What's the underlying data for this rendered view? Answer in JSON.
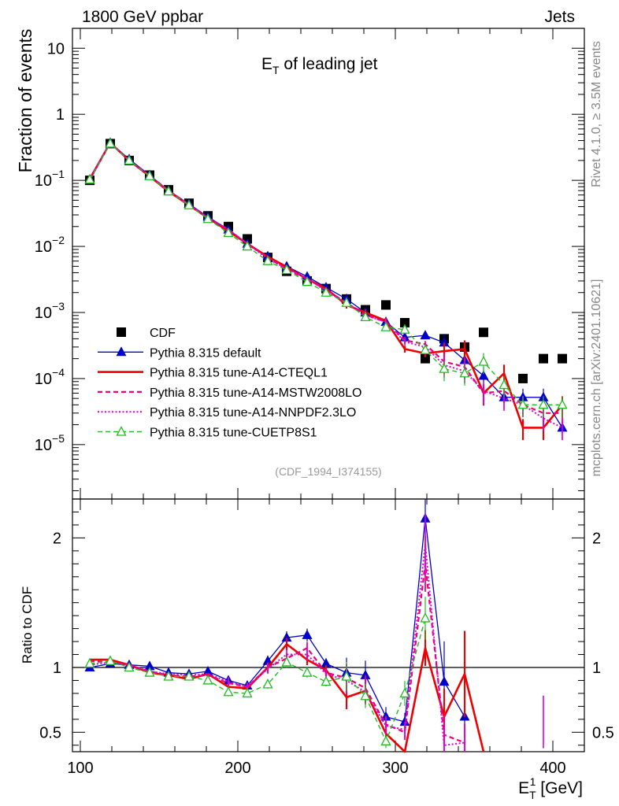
{
  "header": {
    "left": "1800 GeV ppbar",
    "right": "Jets"
  },
  "side": {
    "rivet": "Rivet 4.1.0, ≥ 3.5M events",
    "mcplots": "mcplots.cern.ch [arXiv:2401.10621]"
  },
  "analysis_id": "(CDF_1994_I374155)",
  "chart_data": [
    {
      "type": "scatter",
      "title": "E_T of leading jet",
      "title_main": "E",
      "title_sub": "T",
      "title_rest": " of leading jet",
      "xlabel": "E_T^1 [GeV]",
      "ylabel": "Fraction of events",
      "yscale": "log",
      "xlim": [
        95,
        420
      ],
      "ylim": [
        1.5e-06,
        20
      ],
      "xticks": [
        100,
        200,
        300,
        400
      ],
      "yticks": [
        {
          "value": 1e-05,
          "base": "10",
          "exp": "−5"
        },
        {
          "value": 0.0001,
          "base": "10",
          "exp": "−4"
        },
        {
          "value": 0.001,
          "base": "10",
          "exp": "−3"
        },
        {
          "value": 0.01,
          "base": "10",
          "exp": "−2"
        },
        {
          "value": 0.1,
          "base": "10",
          "exp": "−1"
        },
        {
          "value": 1,
          "base": "1",
          "exp": ""
        },
        {
          "value": 10,
          "base": "10",
          "exp": ""
        }
      ],
      "x": [
        106,
        119,
        131,
        144,
        156,
        169,
        181,
        194,
        206,
        219,
        231,
        244,
        256,
        269,
        281,
        294,
        306,
        319,
        331,
        344,
        356,
        369,
        381,
        394,
        406
      ],
      "series": [
        {
          "name": "CDF",
          "color": "#000000",
          "style": "data",
          "values": [
            0.1,
            0.36,
            0.2,
            0.12,
            0.072,
            0.045,
            0.029,
            0.02,
            0.013,
            0.0068,
            0.0042,
            0.003,
            0.0023,
            0.0016,
            0.0011,
            0.0013,
            0.0007,
            0.0002,
            0.0004,
            0.0003,
            0.0005,
            null,
            0.0001,
            0.0002,
            0.0002
          ]
        },
        {
          "name": "Pythia 8.315 default",
          "color": "#0000cc",
          "style": "default",
          "values": [
            0.1,
            0.37,
            0.21,
            0.12,
            0.07,
            0.044,
            0.028,
            0.018,
            0.011,
            0.0071,
            0.005,
            0.0035,
            0.0024,
            0.0016,
            0.001,
            0.00072,
            0.00042,
            0.00045,
            0.00035,
            0.00019,
            0.00011,
            5.2e-05,
            5.2e-05,
            5.2e-05,
            1.8e-05
          ]
        },
        {
          "name": "Pythia 8.315 tune-A14-CTEQL1",
          "color": "#ee0000",
          "style": "a14cteq",
          "values": [
            0.105,
            0.37,
            0.2,
            0.115,
            0.068,
            0.042,
            0.027,
            0.017,
            0.011,
            0.007,
            0.0049,
            0.0032,
            0.0023,
            0.0013,
            0.001,
            0.00075,
            0.00028,
            0.00024,
            0.00026,
            0.00028,
            6e-05,
            0.00012,
            1.8e-05,
            1.8e-05,
            4e-05
          ]
        },
        {
          "name": "Pythia 8.315 tune-A14-MSTW2008LO",
          "color": "#ee0077",
          "style": "a14mstw",
          "values": [
            0.105,
            0.37,
            0.2,
            0.118,
            0.07,
            0.043,
            0.027,
            0.018,
            0.011,
            0.0068,
            0.0045,
            0.0032,
            0.0022,
            0.0014,
            0.00092,
            0.00072,
            0.00038,
            0.00033,
            0.00018,
            0.00015,
            6e-05,
            6.5e-05,
            4e-05,
            3e-05,
            3e-05
          ]
        },
        {
          "name": "Pythia 8.315 tune-A14-NNPDF2.3LO",
          "color": "#dd00dd",
          "style": "a14nnpdf",
          "values": [
            0.1,
            0.37,
            0.2,
            0.116,
            0.07,
            0.043,
            0.027,
            0.018,
            0.011,
            0.0065,
            0.0046,
            0.0033,
            0.0021,
            0.0014,
            0.0009,
            0.00072,
            0.00036,
            0.0003,
            0.00016,
            0.00013,
            6.5e-05,
            5e-05,
            4e-05,
            2.5e-05,
            1.8e-05
          ]
        },
        {
          "name": "Pythia 8.315 tune-CUETP8S1",
          "color": "#22bb22",
          "style": "cuetp",
          "values": [
            0.103,
            0.36,
            0.2,
            0.116,
            0.068,
            0.042,
            0.026,
            0.016,
            0.01,
            0.006,
            0.0044,
            0.0029,
            0.002,
            0.0014,
            0.00085,
            0.0006,
            0.00055,
            0.00027,
            0.00014,
            0.00012,
            0.00018,
            8e-05,
            4e-05,
            4e-05,
            4e-05
          ]
        }
      ],
      "legend_position": "lower-left"
    },
    {
      "type": "line",
      "title": "Ratio to CDF",
      "ylabel": "Ratio to CDF",
      "xlim": [
        95,
        420
      ],
      "ylim": [
        0.35,
        2.3
      ],
      "yticks": [
        0.5,
        1,
        2
      ],
      "reference_line": 1,
      "x": [
        106,
        119,
        131,
        144,
        156,
        169,
        181,
        194,
        206,
        219,
        231,
        244,
        256,
        269,
        281,
        294,
        306,
        319,
        331,
        344,
        356,
        369,
        381,
        394,
        406
      ],
      "series": [
        {
          "name": "Pythia 8.315 default",
          "color": "#0000cc",
          "style": "default",
          "values": [
            1.0,
            1.03,
            1.02,
            1.01,
            0.96,
            0.95,
            0.97,
            0.9,
            0.86,
            1.05,
            1.23,
            1.25,
            1.03,
            0.96,
            0.94,
            0.62,
            0.58,
            2.15,
            0.89,
            0.62,
            null,
            null,
            null,
            null,
            null
          ]
        },
        {
          "name": "Pythia 8.315 tune-A14-CTEQL1",
          "color": "#ee0000",
          "style": "a14cteq",
          "values": [
            1.06,
            1.06,
            1.02,
            0.96,
            0.94,
            0.91,
            0.95,
            0.85,
            0.84,
            1.0,
            1.18,
            1.06,
            0.98,
            0.77,
            0.82,
            0.49,
            0.3,
            1.15,
            0.62,
            0.95,
            0.3,
            null,
            null,
            null,
            null
          ]
        },
        {
          "name": "Pythia 8.315 tune-A14-MSTW2008LO",
          "color": "#ee0077",
          "style": "a14mstw",
          "values": [
            1.05,
            1.04,
            1.02,
            0.97,
            0.94,
            0.93,
            0.94,
            0.88,
            0.85,
            1.0,
            1.07,
            1.15,
            0.96,
            0.92,
            0.84,
            0.56,
            0.5,
            1.8,
            0.48,
            0.42,
            null,
            null,
            null,
            null,
            null
          ]
        },
        {
          "name": "Pythia 8.315 tune-A14-NNPDF2.3LO",
          "color": "#dd00dd",
          "style": "a14nnpdf",
          "values": [
            1.02,
            1.04,
            1.02,
            0.97,
            0.95,
            0.94,
            0.95,
            0.89,
            0.85,
            0.99,
            1.1,
            1.1,
            0.95,
            0.9,
            0.81,
            0.55,
            0.52,
            1.95,
            0.4,
            0.42,
            null,
            null,
            null,
            0.58,
            null
          ]
        },
        {
          "name": "Pythia 8.315 tune-CUETP8S1",
          "color": "#22bb22",
          "style": "cuetp",
          "values": [
            1.03,
            1.05,
            1.0,
            0.96,
            0.93,
            0.93,
            0.9,
            0.81,
            0.8,
            0.87,
            1.04,
            0.96,
            0.89,
            0.93,
            0.78,
            0.43,
            0.8,
            1.38,
            null,
            null,
            null,
            null,
            null,
            null,
            null
          ]
        }
      ]
    }
  ]
}
